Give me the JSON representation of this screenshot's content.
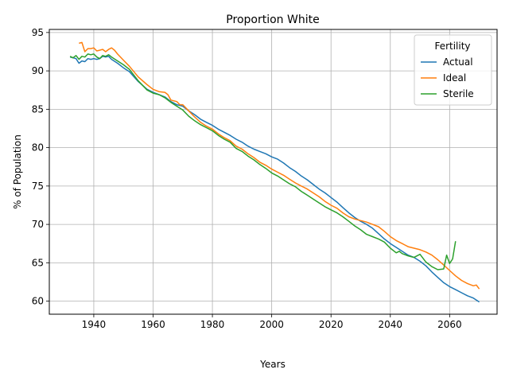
{
  "chart_data": {
    "type": "line",
    "title": "Proportion White",
    "xlabel": "Years",
    "ylabel": "% of Population",
    "xlim": [
      1925,
      2076
    ],
    "ylim": [
      58.3,
      95.4
    ],
    "xticks": [
      1940,
      1960,
      1980,
      2000,
      2020,
      2040,
      2060
    ],
    "yticks": [
      60,
      65,
      70,
      75,
      80,
      85,
      90,
      95
    ],
    "grid": true,
    "legend": {
      "title": "Fertility",
      "placement": "top-right"
    },
    "series": [
      {
        "name": "Actual",
        "color": "#1f77b4",
        "x": [
          1932,
          1934,
          1935,
          1936,
          1937,
          1938,
          1939,
          1940,
          1941,
          1942,
          1943,
          1944,
          1945,
          1946,
          1948,
          1950,
          1952,
          1955,
          1958,
          1960,
          1962,
          1964,
          1966,
          1968,
          1970,
          1972,
          1974,
          1976,
          1978,
          1980,
          1982,
          1984,
          1986,
          1988,
          1990,
          1992,
          1994,
          1996,
          1998,
          2000,
          2002,
          2004,
          2006,
          2008,
          2010,
          2012,
          2014,
          2016,
          2018,
          2020,
          2022,
          2024,
          2026,
          2028,
          2030,
          2032,
          2034,
          2036,
          2038,
          2040,
          2042,
          2044,
          2046,
          2048,
          2050,
          2052,
          2054,
          2056,
          2058,
          2060,
          2062,
          2064,
          2066,
          2068,
          2070
        ],
        "y": [
          91.8,
          91.6,
          91.0,
          91.3,
          91.2,
          91.6,
          91.5,
          91.6,
          91.5,
          91.6,
          91.9,
          91.8,
          91.9,
          91.5,
          91.0,
          90.4,
          89.9,
          88.6,
          87.6,
          87.2,
          86.9,
          86.6,
          86.0,
          85.6,
          85.4,
          84.8,
          84.3,
          83.7,
          83.3,
          82.9,
          82.4,
          82.0,
          81.6,
          81.1,
          80.7,
          80.2,
          79.8,
          79.5,
          79.2,
          78.8,
          78.5,
          78.0,
          77.4,
          76.9,
          76.3,
          75.8,
          75.2,
          74.6,
          74.1,
          73.5,
          72.9,
          72.2,
          71.5,
          70.9,
          70.4,
          70.0,
          69.5,
          68.8,
          68.1,
          67.5,
          67.0,
          66.5,
          66.0,
          65.7,
          65.2,
          64.6,
          63.8,
          63.1,
          62.4,
          61.9,
          61.5,
          61.1,
          60.7,
          60.4,
          59.9
        ]
      },
      {
        "name": "Ideal",
        "color": "#ff7f0e",
        "x": [
          1935,
          1936,
          1937,
          1938,
          1939,
          1940,
          1941,
          1942,
          1943,
          1944,
          1945,
          1946,
          1947,
          1948,
          1950,
          1952,
          1955,
          1958,
          1960,
          1962,
          1964,
          1965,
          1966,
          1968,
          1969,
          1970,
          1972,
          1974,
          1976,
          1978,
          1980,
          1982,
          1984,
          1986,
          1988,
          1990,
          1992,
          1994,
          1996,
          1998,
          2000,
          2002,
          2004,
          2006,
          2008,
          2010,
          2012,
          2014,
          2016,
          2018,
          2020,
          2022,
          2024,
          2026,
          2028,
          2030,
          2032,
          2034,
          2036,
          2038,
          2040,
          2042,
          2044,
          2046,
          2048,
          2050,
          2052,
          2054,
          2056,
          2058,
          2060,
          2062,
          2064,
          2066,
          2068,
          2069,
          2070
        ],
        "y": [
          93.6,
          93.7,
          92.5,
          92.9,
          92.9,
          93.0,
          92.6,
          92.7,
          92.8,
          92.5,
          92.8,
          93.0,
          92.7,
          92.2,
          91.4,
          90.6,
          89.2,
          88.2,
          87.6,
          87.3,
          87.2,
          86.9,
          86.2,
          86.0,
          85.6,
          85.6,
          84.8,
          84.0,
          83.3,
          82.8,
          82.4,
          81.8,
          81.3,
          80.9,
          80.2,
          79.8,
          79.2,
          78.7,
          78.1,
          77.7,
          77.2,
          76.8,
          76.4,
          75.9,
          75.4,
          75.0,
          74.6,
          74.1,
          73.6,
          73.0,
          72.5,
          72.1,
          71.5,
          71.0,
          70.7,
          70.5,
          70.3,
          70.0,
          69.7,
          69.1,
          68.4,
          67.9,
          67.5,
          67.1,
          66.9,
          66.7,
          66.4,
          66.0,
          65.4,
          64.7,
          64.0,
          63.3,
          62.7,
          62.3,
          62.0,
          62.1,
          61.6
        ]
      },
      {
        "name": "Sterile",
        "color": "#2ca02c",
        "x": [
          1932,
          1933,
          1934,
          1935,
          1936,
          1937,
          1938,
          1939,
          1940,
          1941,
          1942,
          1943,
          1944,
          1945,
          1946,
          1948,
          1950,
          1952,
          1955,
          1958,
          1960,
          1962,
          1964,
          1966,
          1968,
          1970,
          1972,
          1974,
          1976,
          1978,
          1980,
          1982,
          1984,
          1986,
          1988,
          1990,
          1992,
          1994,
          1996,
          1998,
          2000,
          2002,
          2004,
          2006,
          2008,
          2010,
          2012,
          2014,
          2016,
          2018,
          2020,
          2022,
          2024,
          2026,
          2028,
          2030,
          2032,
          2034,
          2036,
          2038,
          2040,
          2042,
          2043,
          2044,
          2046,
          2048,
          2050,
          2052,
          2054,
          2056,
          2058,
          2059,
          2060,
          2061,
          2062
        ],
        "y": [
          91.9,
          91.7,
          92.0,
          91.5,
          91.9,
          91.8,
          92.2,
          92.1,
          92.2,
          91.8,
          91.6,
          92.0,
          91.9,
          92.1,
          91.8,
          91.3,
          90.8,
          90.2,
          88.7,
          87.5,
          87.1,
          86.9,
          86.5,
          85.9,
          85.4,
          84.9,
          84.1,
          83.5,
          83.0,
          82.6,
          82.2,
          81.6,
          81.1,
          80.7,
          79.9,
          79.5,
          78.9,
          78.4,
          77.8,
          77.3,
          76.7,
          76.3,
          75.8,
          75.3,
          74.9,
          74.3,
          73.8,
          73.3,
          72.8,
          72.3,
          71.9,
          71.5,
          71.0,
          70.4,
          69.8,
          69.3,
          68.7,
          68.4,
          68.1,
          67.7,
          66.9,
          66.3,
          66.5,
          66.2,
          65.9,
          65.7,
          66.1,
          65.1,
          64.5,
          64.1,
          64.2,
          66.0,
          64.9,
          65.5,
          67.8
        ]
      }
    ]
  }
}
